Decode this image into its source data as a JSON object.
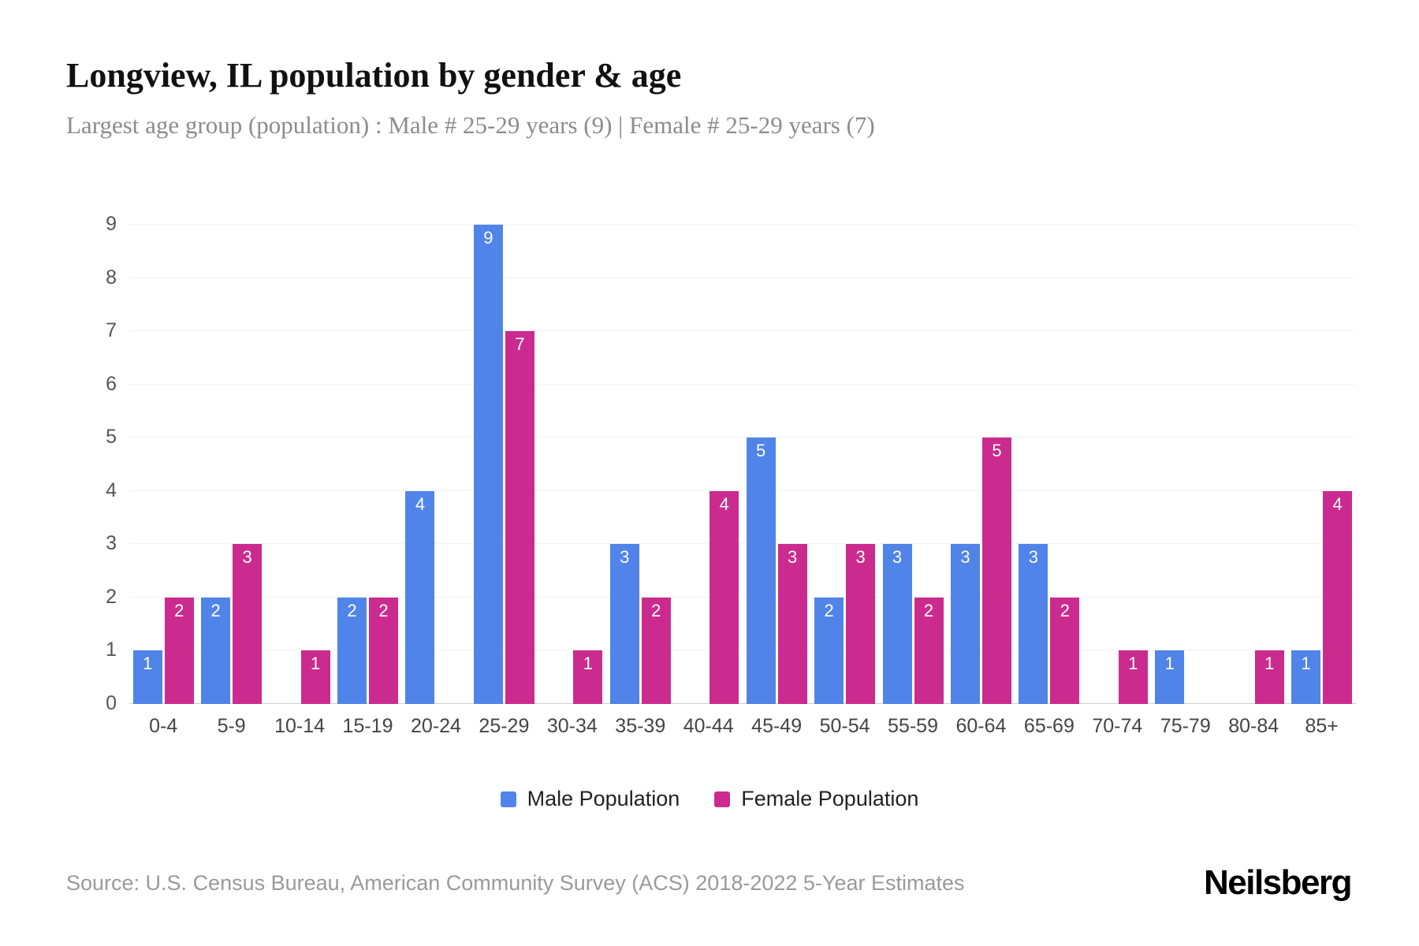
{
  "header": {
    "title": "Longview, IL population by gender & age",
    "subtitle": "Largest age group (population) : Male # 25-29 years (9) | Female # 25-29 years (7)"
  },
  "chart_data": {
    "type": "bar",
    "title": "Longview, IL population by gender & age",
    "categories": [
      "0-4",
      "5-9",
      "10-14",
      "15-19",
      "20-24",
      "25-29",
      "30-34",
      "35-39",
      "40-44",
      "45-49",
      "50-54",
      "55-59",
      "60-64",
      "65-69",
      "70-74",
      "75-79",
      "80-84",
      "85+"
    ],
    "series": [
      {
        "name": "Male Population",
        "color": "#5084e8",
        "values": [
          1,
          2,
          0,
          2,
          4,
          9,
          0,
          3,
          0,
          5,
          2,
          3,
          3,
          3,
          0,
          1,
          0,
          1
        ]
      },
      {
        "name": "Female Population",
        "color": "#cb2b8e",
        "values": [
          2,
          3,
          1,
          2,
          0,
          7,
          1,
          2,
          4,
          3,
          3,
          2,
          5,
          2,
          1,
          0,
          1,
          4
        ]
      }
    ],
    "xlabel": "",
    "ylabel": "",
    "ylim": [
      0,
      9
    ],
    "yticks": [
      0,
      1,
      2,
      3,
      4,
      5,
      6,
      7,
      8,
      9
    ],
    "grid": true,
    "legend_position": "bottom",
    "bar_value_labels": true
  },
  "footer": {
    "source": "Source: U.S. Census Bureau, American Community Survey (ACS) 2018-2022 5-Year Estimates",
    "brand": "Neilsberg"
  }
}
